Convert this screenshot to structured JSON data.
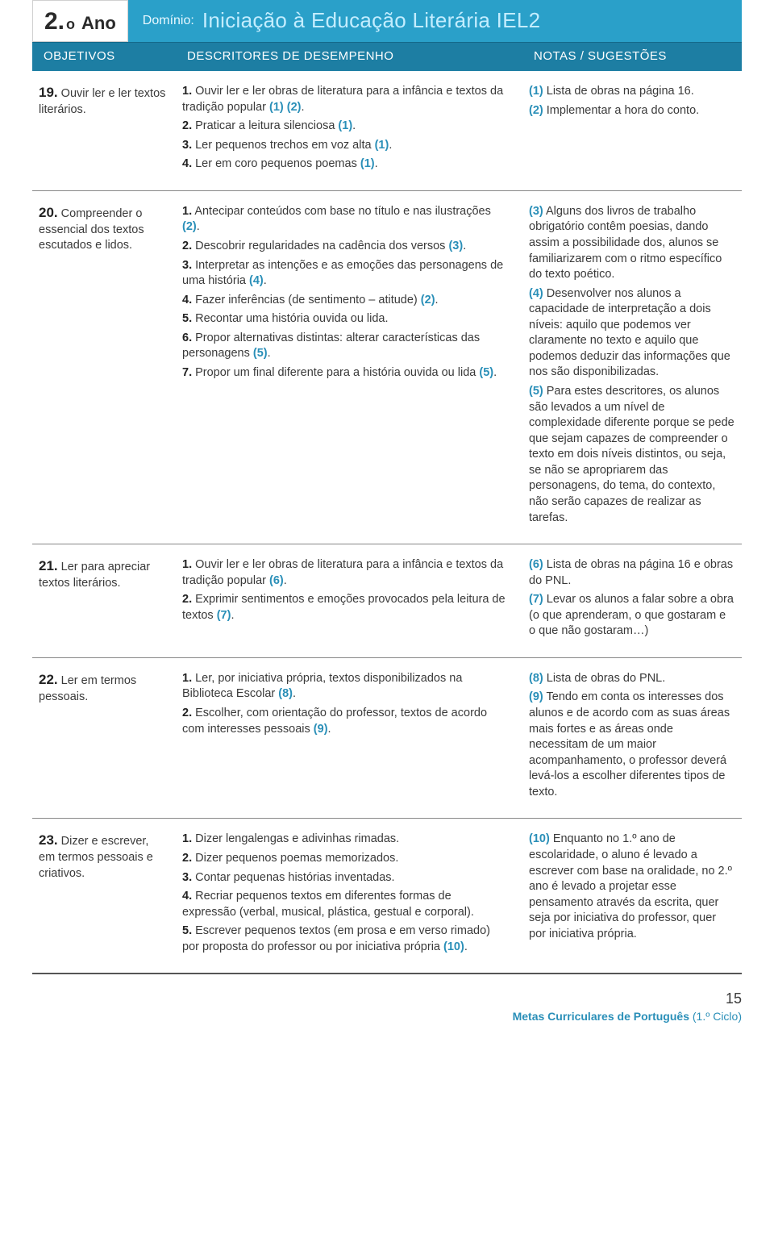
{
  "header": {
    "ano_number": "2.",
    "ano_ord": "o",
    "ano_word": "Ano",
    "domain_label": "Domínio:",
    "domain_title": "Iniciação à Educação Literária IEL2",
    "col_objetivos": "OBJETIVOS",
    "col_descritores": "DESCRITORES DE DESEMPENHO",
    "col_notas": "NOTAS / SUGESTÕES"
  },
  "rows": [
    {
      "obj_num": "19.",
      "obj_txt": " Ouvir ler e ler textos literários.",
      "desc": [
        {
          "n": "1.",
          "t": " Ouvir ler e ler obras de literatura para a infância e textos da tradição popular ",
          "r": "(1) (2)",
          "tail": "."
        },
        {
          "n": "2.",
          "t": " Praticar a leitura silenciosa ",
          "r": "(1)",
          "tail": "."
        },
        {
          "n": "3.",
          "t": " Ler pequenos trechos em voz alta ",
          "r": "(1)",
          "tail": "."
        },
        {
          "n": "4.",
          "t": " Ler em coro pequenos poemas ",
          "r": "(1)",
          "tail": "."
        }
      ],
      "notes": [
        {
          "r": "(1)",
          "t": " Lista de obras na página 16."
        },
        {
          "r": "(2)",
          "t": " Implementar a hora do conto."
        }
      ]
    },
    {
      "obj_num": "20.",
      "obj_txt": " Compreender o essencial dos textos escutados e lidos.",
      "desc": [
        {
          "n": "1.",
          "t": " Antecipar conteúdos com base no título e nas ilustrações ",
          "r": "(2)",
          "tail": "."
        },
        {
          "n": "2.",
          "t": " Descobrir regularidades na cadência dos versos ",
          "r": "(3)",
          "tail": "."
        },
        {
          "n": "3.",
          "t": " Interpretar as intenções e as emoções das personagens de uma história ",
          "r": "(4)",
          "tail": "."
        },
        {
          "n": "4.",
          "t": " Fazer inferências (de sentimento – atitude) ",
          "r": "(2)",
          "tail": "."
        },
        {
          "n": "5.",
          "t": " Recontar uma história ouvida ou lida.",
          "r": "",
          "tail": ""
        },
        {
          "n": "6.",
          "t": " Propor alternativas distintas: alterar características das personagens ",
          "r": "(5)",
          "tail": "."
        },
        {
          "n": "7.",
          "t": " Propor um final diferente para a história ouvida ou lida ",
          "r": "(5)",
          "tail": "."
        }
      ],
      "notes": [
        {
          "r": "(3)",
          "t": " Alguns dos livros de trabalho obrigatório contêm poesias, dando assim a possibilidade dos, alunos se familiarizarem com o ritmo específico do texto poético."
        },
        {
          "r": "(4)",
          "t": " Desenvolver nos alunos a capacidade de interpretação a dois níveis: aquilo que podemos ver claramente no texto e aquilo que podemos deduzir das informações que nos são disponibilizadas."
        },
        {
          "r": "(5)",
          "t": " Para estes descritores, os alunos são levados a um nível de complexidade diferente porque se pede que sejam capazes de compreender o texto em dois níveis distintos, ou seja, se não se apropriarem das personagens, do tema, do contexto, não serão capazes de realizar as tarefas."
        }
      ]
    },
    {
      "obj_num": "21.",
      "obj_txt": " Ler para apreciar textos literários.",
      "desc": [
        {
          "n": "1.",
          "t": " Ouvir ler e ler obras de literatura para a infância e textos da tradição popular ",
          "r": "(6)",
          "tail": "."
        },
        {
          "n": "2.",
          "t": " Exprimir sentimentos e emoções provocados pela leitura de textos ",
          "r": "(7)",
          "tail": "."
        }
      ],
      "notes": [
        {
          "r": "(6)",
          "t": " Lista de obras na página 16 e obras do PNL."
        },
        {
          "r": "(7)",
          "t": " Levar os alunos a falar sobre a obra (o que aprenderam, o que gostaram e o que não gostaram…)"
        }
      ]
    },
    {
      "obj_num": "22.",
      "obj_txt": " Ler em termos pessoais.",
      "desc": [
        {
          "n": "1.",
          "t": " Ler, por iniciativa própria, textos disponibilizados na Biblioteca Escolar ",
          "r": "(8)",
          "tail": "."
        },
        {
          "n": "2.",
          "t": " Escolher, com orientação do professor, textos de acordo com interesses pessoais ",
          "r": "(9)",
          "tail": "."
        }
      ],
      "notes": [
        {
          "r": "(8)",
          "t": " Lista de obras do PNL."
        },
        {
          "r": "(9)",
          "t": " Tendo em conta os interesses dos alunos e de acordo com as suas áreas mais fortes e as áreas onde necessitam de um maior acompanhamento, o professor deverá levá-los a escolher diferentes tipos de texto."
        }
      ]
    },
    {
      "obj_num": "23.",
      "obj_txt": " Dizer e escrever, em termos pessoais e criativos.",
      "desc": [
        {
          "n": "1.",
          "t": " Dizer lengalengas e adivinhas rimadas.",
          "r": "",
          "tail": ""
        },
        {
          "n": "2.",
          "t": " Dizer pequenos poemas memorizados.",
          "r": "",
          "tail": ""
        },
        {
          "n": "3.",
          "t": " Contar pequenas histórias inventadas.",
          "r": "",
          "tail": ""
        },
        {
          "n": "4.",
          "t": " Recriar pequenos textos em diferentes formas de expressão (verbal, musical, plástica, gestual e corporal).",
          "r": "",
          "tail": ""
        },
        {
          "n": "5.",
          "t": " Escrever pequenos textos (em prosa e em verso rimado) por proposta do professor ou por iniciativa própria ",
          "r": "(10)",
          "tail": "."
        }
      ],
      "notes": [
        {
          "r": "(10)",
          "t": " Enquanto no 1.º ano de escolaridade, o aluno é levado a escrever com base na oralidade, no 2.º ano é levado a projetar esse pensamento através da escrita, quer seja por iniciativa do professor, quer por iniciativa própria."
        }
      ]
    }
  ],
  "footer": {
    "page_num": "15",
    "pub_main": "Metas Curriculares de Português",
    "pub_sub": "  (1.º Ciclo)"
  },
  "colors": {
    "header_bg": "#2aa0c9",
    "subheader_bg": "#1d7ea3",
    "ref_color": "#2a8fb8",
    "text_color": "#3a3a3a",
    "border_color": "#888888"
  }
}
